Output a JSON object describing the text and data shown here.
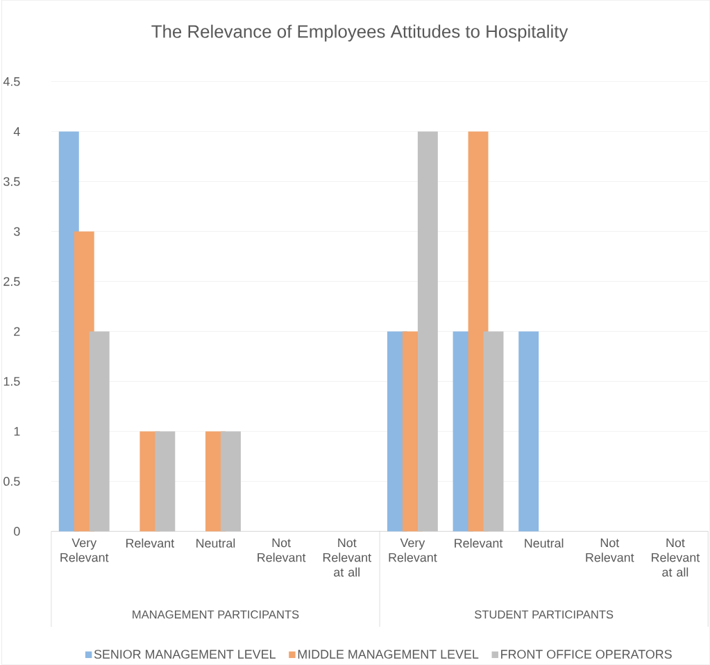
{
  "chart_data": {
    "type": "bar",
    "title": "The Relevance of Employees Attitudes to Hospitality",
    "categories": [
      "Very Relevant",
      "Relevant",
      "Neutral",
      "Not Relevant",
      "Not Relevant at all",
      "Very Relevant",
      "Relevant",
      "Neutral",
      "Not Relevant",
      "Not Relevant at all"
    ],
    "series": [
      {
        "name": "SENIOR MANAGEMENT LEVEL",
        "color": "#8cb8e3",
        "values": [
          4,
          0,
          0,
          0,
          0,
          2,
          2,
          2,
          0,
          0
        ]
      },
      {
        "name": "MIDDLE MANAGEMENT LEVEL",
        "color": "#f2a46c",
        "values": [
          3,
          1,
          1,
          0,
          0,
          2,
          4,
          0,
          0,
          0
        ]
      },
      {
        "name": "FRONT OFFICE OPERATORS",
        "color": "#c0c0c0",
        "values": [
          2,
          1,
          1,
          0,
          0,
          4,
          2,
          0,
          0,
          0
        ]
      }
    ],
    "annotations": [
      "MANAGEMENT PARTICIPANTS",
      "STUDENT PARTICIPANTS"
    ],
    "ylim": [
      0,
      4.5
    ],
    "yticks": [
      0,
      0.5,
      1,
      1.5,
      2,
      2.5,
      3,
      3.5,
      4,
      4.5
    ],
    "grid": "y",
    "legend": "bottom"
  }
}
